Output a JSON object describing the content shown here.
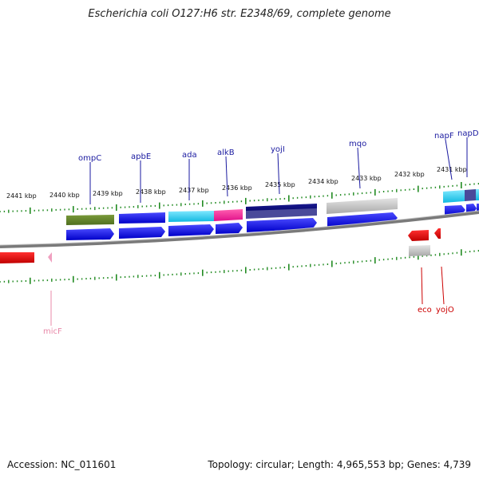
{
  "title": "Escherichia coli O127:H6 str. E2348/69, complete genome",
  "footer": {
    "accession": "Accession: NC_011601",
    "summary": "Topology: circular; Length: 4,965,553 bp; Genes: 4,739"
  },
  "scale": {
    "unit": "kbp",
    "labels": [
      "2441 kbp",
      "2440 kbp",
      "2439 kbp",
      "2438 kbp",
      "2437 kbp",
      "2436 kbp",
      "2435 kbp",
      "2434 kbp",
      "2433 kbp",
      "2432 kbp",
      "2431 kbp"
    ]
  },
  "genes": [
    {
      "name": "ompC",
      "color": "#1a1aa0"
    },
    {
      "name": "apbE",
      "color": "#1a1aa0"
    },
    {
      "name": "ada",
      "color": "#1a1aa0"
    },
    {
      "name": "alkB",
      "color": "#1a1aa0"
    },
    {
      "name": "yojI",
      "color": "#1a1aa0"
    },
    {
      "name": "mqo",
      "color": "#1a1aa0"
    },
    {
      "name": "napF",
      "color": "#1a1aa0"
    },
    {
      "name": "napD",
      "color": "#1a1aa0"
    },
    {
      "name": "eco",
      "color": "#cc0000"
    },
    {
      "name": "yojO",
      "color": "#cc0000"
    },
    {
      "name": "micF",
      "color": "#e888a8"
    }
  ],
  "colors": {
    "cds": "#0a0ae6",
    "tick": "#228b22",
    "backbone": "#808080",
    "rna_red": "#ee0000"
  }
}
